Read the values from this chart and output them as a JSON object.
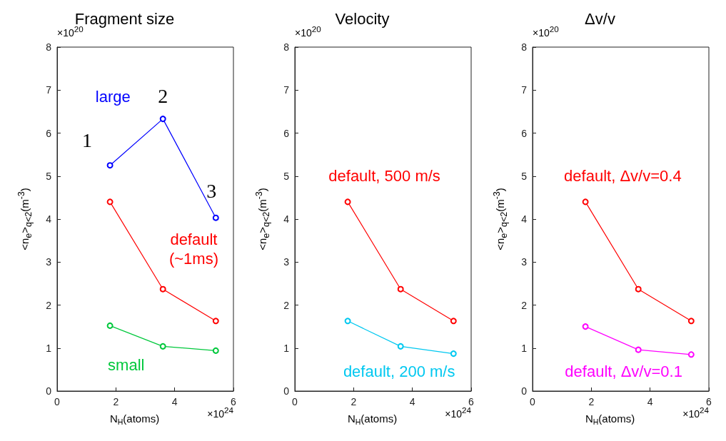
{
  "chart_data": [
    {
      "type": "line",
      "title": "Fragment size",
      "xlabel": "N$_{H}$(atoms)",
      "ylabel": "<n$_{e}$>$_{q<2}$(m$^{-3}$)",
      "x": [
        1.8,
        3.6,
        5.4
      ],
      "xlim": [
        0,
        6
      ],
      "xticks": [
        0,
        2,
        4,
        6
      ],
      "ylim": [
        0,
        8
      ],
      "yticks": [
        0,
        1,
        2,
        3,
        4,
        5,
        6,
        7,
        8
      ],
      "grid": false,
      "marker": "circle",
      "line_style": "solid",
      "series": [
        {
          "name": "large",
          "color": "#0000ff",
          "values": [
            5.25,
            6.33,
            4.03
          ]
        },
        {
          "name": "default (~1ms)",
          "color": "#ff0000",
          "values": [
            4.4,
            2.37,
            1.63
          ]
        },
        {
          "name": "small",
          "color": "#00c83c",
          "values": [
            1.52,
            1.04,
            0.94
          ]
        }
      ],
      "annotations": [
        "×10$^{20}$",
        "×10$^{24}$",
        {
          "text": "1",
          "x": 1.8,
          "y": 5.25
        },
        {
          "text": "2",
          "x": 3.6,
          "y": 6.33
        },
        {
          "text": "3",
          "x": 5.4,
          "y": 4.03
        }
      ]
    },
    {
      "type": "line",
      "title": "Velocity",
      "xlabel": "N$_{H}$(atoms)",
      "ylabel": "<n$_{e}$>$_{q<2}$(m$^{-3}$)",
      "x": [
        1.8,
        3.6,
        5.4
      ],
      "xlim": [
        0,
        6
      ],
      "xticks": [
        0,
        2,
        4,
        6
      ],
      "ylim": [
        0,
        8
      ],
      "yticks": [
        0,
        1,
        2,
        3,
        4,
        5,
        6,
        7,
        8
      ],
      "grid": false,
      "marker": "circle",
      "line_style": "solid",
      "series": [
        {
          "name": "default, 500 m/s",
          "color": "#ff0000",
          "values": [
            4.4,
            2.37,
            1.63
          ]
        },
        {
          "name": "default, 200 m/s",
          "color": "#00c8f0",
          "values": [
            1.63,
            1.04,
            0.87
          ]
        }
      ],
      "annotations": [
        "×10$^{20}$",
        "×10$^{24}$"
      ]
    },
    {
      "type": "line",
      "title": "Δv/v",
      "xlabel": "N$_{H}$(atoms)",
      "ylabel": "<n$_{e}$>$_{q<2}$(m$^{-3}$)",
      "x": [
        1.8,
        3.6,
        5.4
      ],
      "xlim": [
        0,
        6
      ],
      "xticks": [
        0,
        2,
        4,
        6
      ],
      "ylim": [
        0,
        8
      ],
      "yticks": [
        0,
        1,
        2,
        3,
        4,
        5,
        6,
        7,
        8
      ],
      "grid": false,
      "marker": "circle",
      "line_style": "solid",
      "series": [
        {
          "name": "default, Δv/v=0.4",
          "color": "#ff0000",
          "values": [
            4.4,
            2.37,
            1.63
          ]
        },
        {
          "name": "default, Δv/v=0.1",
          "color": "#ff00ff",
          "values": [
            1.5,
            0.96,
            0.85
          ]
        }
      ],
      "annotations": [
        "×10$^{20}$",
        "×10$^{24}$"
      ]
    }
  ]
}
